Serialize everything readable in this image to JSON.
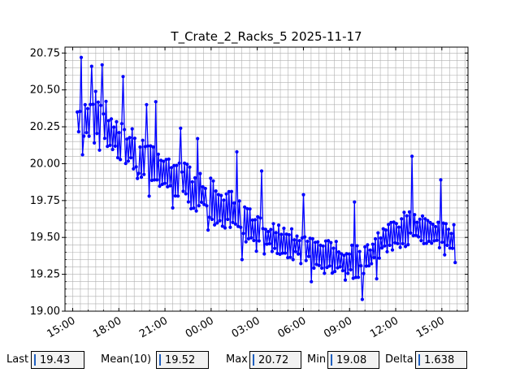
{
  "chart_data": {
    "type": "line",
    "title": "T_Crate_2_Racks_5 2025-11-17",
    "xlabel": "",
    "ylabel": "",
    "x_ticks": [
      "15:00",
      "18:00",
      "21:00",
      "00:00",
      "03:00",
      "06:00",
      "09:00",
      "12:00",
      "15:00"
    ],
    "y_ticks": [
      "19.00",
      "19.25",
      "19.50",
      "19.75",
      "20.00",
      "20.25",
      "20.50",
      "20.75"
    ],
    "x_range_hours": [
      -0.5,
      25.7
    ],
    "ylim": [
      19.0,
      20.79
    ],
    "grid": true,
    "series_color": "#0000ff",
    "series": [
      {
        "name": "",
        "trend": [
          {
            "h": 0.3,
            "low": 20.15,
            "high": 20.35
          },
          {
            "h": 1.5,
            "low": 20.1,
            "high": 20.55
          },
          {
            "h": 3.0,
            "low": 20.0,
            "high": 20.3
          },
          {
            "h": 4.5,
            "low": 19.9,
            "high": 20.2
          },
          {
            "h": 6.0,
            "low": 19.8,
            "high": 20.1
          },
          {
            "h": 7.5,
            "low": 19.7,
            "high": 20.0
          },
          {
            "h": 9.0,
            "low": 19.6,
            "high": 19.9
          },
          {
            "h": 10.5,
            "low": 19.5,
            "high": 19.8
          },
          {
            "h": 12.0,
            "low": 19.4,
            "high": 19.65
          },
          {
            "h": 13.5,
            "low": 19.35,
            "high": 19.6
          },
          {
            "h": 15.0,
            "low": 19.3,
            "high": 19.55
          },
          {
            "h": 16.5,
            "low": 19.25,
            "high": 19.5
          },
          {
            "h": 18.0,
            "low": 19.2,
            "high": 19.45
          },
          {
            "h": 19.0,
            "low": 19.25,
            "high": 19.45
          },
          {
            "h": 20.5,
            "low": 19.4,
            "high": 19.6
          },
          {
            "h": 22.0,
            "low": 19.45,
            "high": 19.7
          },
          {
            "h": 23.5,
            "low": 19.4,
            "high": 19.65
          },
          {
            "h": 24.9,
            "low": 19.35,
            "high": 19.6
          }
        ],
        "peaks": [
          {
            "h": 0.55,
            "y": 20.72
          },
          {
            "h": 1.2,
            "y": 20.66
          },
          {
            "h": 1.9,
            "y": 20.67
          },
          {
            "h": 3.3,
            "y": 20.59
          },
          {
            "h": 4.8,
            "y": 20.4
          },
          {
            "h": 5.4,
            "y": 20.42
          },
          {
            "h": 7.0,
            "y": 20.24
          },
          {
            "h": 8.1,
            "y": 20.17
          },
          {
            "h": 10.7,
            "y": 20.08
          },
          {
            "h": 12.3,
            "y": 19.95
          },
          {
            "h": 15.0,
            "y": 19.79
          },
          {
            "h": 18.3,
            "y": 19.74
          },
          {
            "h": 22.1,
            "y": 20.05
          },
          {
            "h": 23.9,
            "y": 19.89
          },
          {
            "h": 24.9,
            "y": 19.85
          }
        ],
        "dips": [
          {
            "h": 0.6,
            "y": 20.06
          },
          {
            "h": 4.2,
            "y": 19.9
          },
          {
            "h": 5.0,
            "y": 19.78
          },
          {
            "h": 6.5,
            "y": 19.7
          },
          {
            "h": 8.8,
            "y": 19.55
          },
          {
            "h": 11.0,
            "y": 19.35
          },
          {
            "h": 15.5,
            "y": 19.2
          },
          {
            "h": 18.8,
            "y": 19.08
          },
          {
            "h": 19.8,
            "y": 19.22
          },
          {
            "h": 25.0,
            "y": 19.33
          }
        ]
      }
    ]
  },
  "stats": {
    "last_label": "Last",
    "last_value": "19.43",
    "mean_label": "Mean(10)",
    "mean_value": "19.52",
    "max_label": "Max",
    "max_value": "20.72",
    "min_label": "Min",
    "min_value": "19.08",
    "delta_label": "Delta",
    "delta_value": "1.638"
  }
}
